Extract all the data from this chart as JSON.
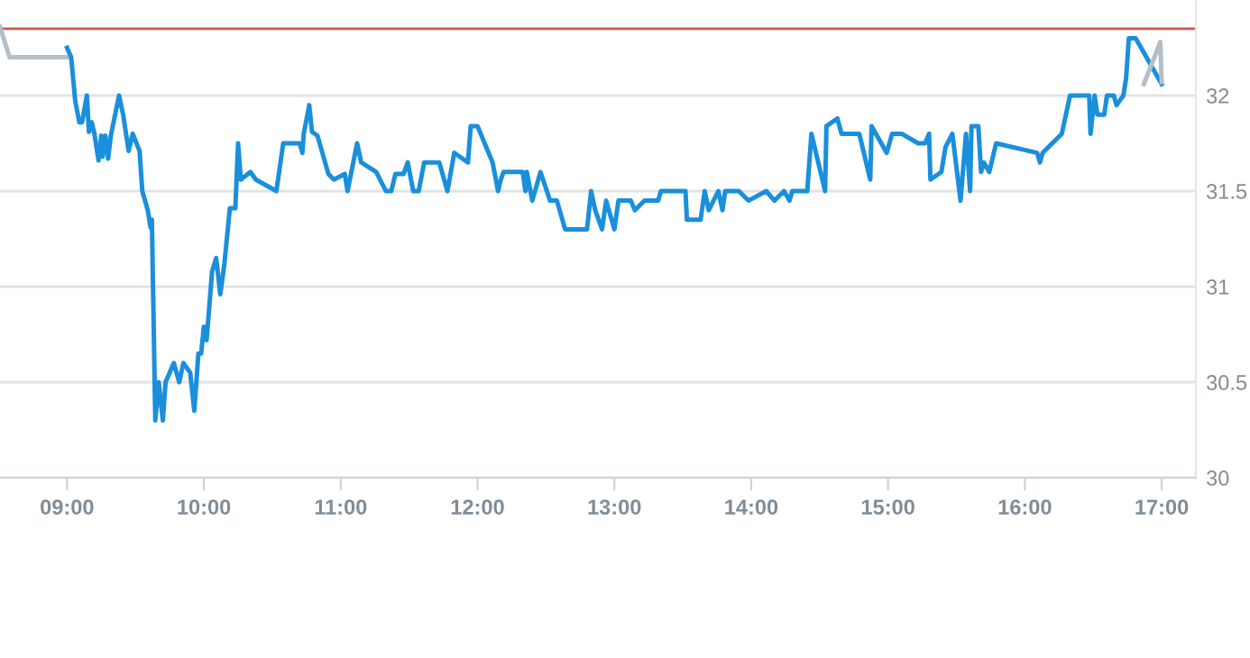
{
  "chart_data": {
    "type": "line",
    "xlim": [
      8.51,
      17.25
    ],
    "ylim": [
      30,
      32.5
    ],
    "xticks": [
      {
        "value": 9,
        "label": "09:00"
      },
      {
        "value": 10,
        "label": "10:00"
      },
      {
        "value": 11,
        "label": "11:00"
      },
      {
        "value": 12,
        "label": "12:00"
      },
      {
        "value": 13,
        "label": "13:00"
      },
      {
        "value": 14,
        "label": "14:00"
      },
      {
        "value": 15,
        "label": "15:00"
      },
      {
        "value": 16,
        "label": "16:00"
      },
      {
        "value": 17,
        "label": "17:00"
      }
    ],
    "yticks": [
      30,
      30.5,
      31,
      31.5,
      32
    ],
    "grid": "y",
    "marker": "none",
    "line_style": "solid",
    "ref_lines": [
      {
        "axis": "y",
        "value": 32.35,
        "color": "#d9534f"
      }
    ],
    "series": [
      {
        "color": "#b4bec8",
        "x": [
          8.51,
          8.58,
          9.0
        ],
        "values": [
          32.36,
          32.2,
          32.2
        ]
      },
      {
        "color": "#1a8fdc",
        "x": [
          9.0,
          9.03,
          9.06,
          9.09,
          9.11,
          9.145,
          9.16,
          9.18,
          9.2,
          9.23,
          9.25,
          9.26,
          9.28,
          9.3,
          9.32,
          9.38,
          9.41,
          9.45,
          9.48,
          9.53,
          9.55,
          9.59,
          9.61,
          9.62,
          9.645,
          9.67,
          9.7,
          9.72,
          9.78,
          9.82,
          9.85,
          9.9,
          9.93,
          9.96,
          9.98,
          10.0,
          10.02,
          10.06,
          10.09,
          10.12,
          10.15,
          10.19,
          10.23,
          10.25,
          10.27,
          10.34,
          10.38,
          10.53,
          10.58,
          10.7,
          10.72,
          10.73,
          10.77,
          10.79,
          10.83,
          10.91,
          10.95,
          11.03,
          11.05,
          11.12,
          11.15,
          11.26,
          11.33,
          11.37,
          11.4,
          11.46,
          11.49,
          11.53,
          11.57,
          11.61,
          11.72,
          11.78,
          11.83,
          11.93,
          11.95,
          12.0,
          12.11,
          12.15,
          12.17,
          12.19,
          12.33,
          12.35,
          12.36,
          12.4,
          12.46,
          12.53,
          12.58,
          12.64,
          12.8,
          12.83,
          12.86,
          12.91,
          12.94,
          13.0,
          13.03,
          13.12,
          13.15,
          13.22,
          13.32,
          13.34,
          13.52,
          13.53,
          13.63,
          13.66,
          13.69,
          13.76,
          13.79,
          13.81,
          13.91,
          13.98,
          14.11,
          14.17,
          14.24,
          14.28,
          14.3,
          14.41,
          14.44,
          14.54,
          14.55,
          14.63,
          14.66,
          14.79,
          14.87,
          14.88,
          14.99,
          15.03,
          15.1,
          15.22,
          15.27,
          15.3,
          15.31,
          15.39,
          15.42,
          15.47,
          15.53,
          15.57,
          15.6,
          15.61,
          15.66,
          15.68,
          15.7,
          15.74,
          15.79,
          16.09,
          16.11,
          16.13,
          16.27,
          16.33,
          16.47,
          16.48,
          16.51,
          16.53,
          16.58,
          16.6,
          16.65,
          16.67,
          16.72,
          16.74,
          16.76,
          16.81,
          17.0
        ],
        "values": [
          32.25,
          32.2,
          31.97,
          31.86,
          31.86,
          32.0,
          31.81,
          31.86,
          31.8,
          31.66,
          31.79,
          31.68,
          31.79,
          31.67,
          31.79,
          32.0,
          31.9,
          31.71,
          31.8,
          31.71,
          31.5,
          31.4,
          31.31,
          31.35,
          30.3,
          30.5,
          30.3,
          30.5,
          30.6,
          30.5,
          30.6,
          30.55,
          30.35,
          30.65,
          30.65,
          30.79,
          30.72,
          31.08,
          31.15,
          30.96,
          31.12,
          31.41,
          31.41,
          31.75,
          31.56,
          31.6,
          31.56,
          31.5,
          31.75,
          31.75,
          31.7,
          31.8,
          31.95,
          31.81,
          31.79,
          31.59,
          31.56,
          31.59,
          31.5,
          31.75,
          31.65,
          31.6,
          31.5,
          31.5,
          31.59,
          31.59,
          31.65,
          31.5,
          31.5,
          31.65,
          31.65,
          31.5,
          31.7,
          31.65,
          31.84,
          31.84,
          31.65,
          31.5,
          31.56,
          31.6,
          31.6,
          31.5,
          31.6,
          31.45,
          31.6,
          31.45,
          31.45,
          31.3,
          31.3,
          31.5,
          31.4,
          31.3,
          31.45,
          31.3,
          31.45,
          31.45,
          31.4,
          31.45,
          31.45,
          31.5,
          31.5,
          31.35,
          31.35,
          31.5,
          31.4,
          31.5,
          31.4,
          31.5,
          31.5,
          31.45,
          31.5,
          31.45,
          31.5,
          31.45,
          31.5,
          31.5,
          31.8,
          31.5,
          31.84,
          31.88,
          31.8,
          31.8,
          31.56,
          31.84,
          31.7,
          31.8,
          31.8,
          31.75,
          31.75,
          31.8,
          31.56,
          31.6,
          31.73,
          31.8,
          31.45,
          31.8,
          31.5,
          31.84,
          31.84,
          31.6,
          31.65,
          31.6,
          31.75,
          31.7,
          31.65,
          31.7,
          31.8,
          32.0,
          32.0,
          31.8,
          32.0,
          31.9,
          31.9,
          32.0,
          32.0,
          31.95,
          32.0,
          32.09,
          32.3,
          32.3,
          32.06
        ]
      },
      {
        "color": "#b4bec8",
        "x": [
          16.87,
          16.99,
          17.0
        ],
        "values": [
          32.06,
          32.28,
          32.07
        ]
      }
    ]
  }
}
